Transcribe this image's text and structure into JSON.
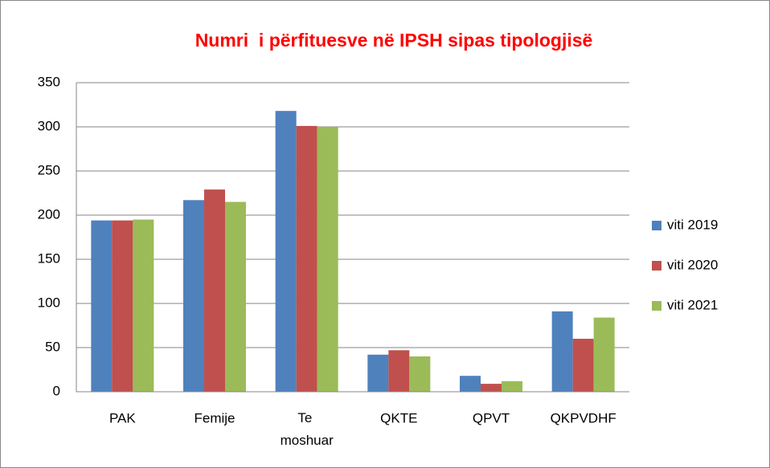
{
  "chart_data": {
    "type": "bar",
    "title": "Numri  i përfituesve në IPSH sipas tipologjisë",
    "categories": [
      "PAK",
      "Femije",
      "Te moshuar",
      "QKTE",
      "QPVT",
      "QKPVDHF"
    ],
    "series": [
      {
        "name": "viti 2019",
        "color": "#4f81bd",
        "values": [
          194,
          217,
          318,
          42,
          18,
          91
        ]
      },
      {
        "name": "viti 2020",
        "color": "#c0504d",
        "values": [
          194,
          229,
          301,
          47,
          9,
          60
        ]
      },
      {
        "name": "viti 2021",
        "color": "#9bbb59",
        "values": [
          195,
          215,
          300,
          40,
          12,
          84
        ]
      }
    ],
    "ylim": [
      0,
      350
    ],
    "yticks": [
      0,
      50,
      100,
      150,
      200,
      250,
      300,
      350
    ],
    "grid": true,
    "legend": "right"
  }
}
